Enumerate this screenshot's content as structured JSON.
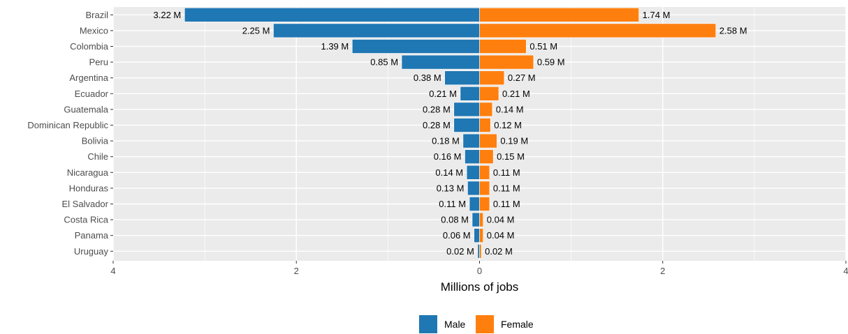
{
  "chart_data": {
    "type": "bar",
    "orientation": "horizontal-diverging",
    "categories": [
      "Brazil",
      "Mexico",
      "Colombia",
      "Peru",
      "Argentina",
      "Ecuador",
      "Guatemala",
      "Dominican Republic",
      "Bolivia",
      "Chile",
      "Nicaragua",
      "Honduras",
      "El Salvador",
      "Costa Rica",
      "Panama",
      "Uruguay"
    ],
    "series": [
      {
        "name": "Male",
        "color": "#1f77b4",
        "direction": "left",
        "values": [
          3.22,
          2.25,
          1.39,
          0.85,
          0.38,
          0.21,
          0.28,
          0.28,
          0.18,
          0.16,
          0.14,
          0.13,
          0.11,
          0.08,
          0.06,
          0.02
        ],
        "labels": [
          "3.22 M",
          "2.25 M",
          "1.39 M",
          "0.85 M",
          "0.38 M",
          "0.21 M",
          "0.28 M",
          "0.28 M",
          "0.18 M",
          "0.16 M",
          "0.14 M",
          "0.13 M",
          "0.11 M",
          "0.08 M",
          "0.06 M",
          "0.02 M"
        ]
      },
      {
        "name": "Female",
        "color": "#ff7f0e",
        "direction": "right",
        "values": [
          1.74,
          2.58,
          0.51,
          0.59,
          0.27,
          0.21,
          0.14,
          0.12,
          0.19,
          0.15,
          0.11,
          0.11,
          0.11,
          0.04,
          0.04,
          0.02
        ],
        "labels": [
          "1.74 M",
          "2.58 M",
          "0.51 M",
          "0.59 M",
          "0.27 M",
          "0.21 M",
          "0.14 M",
          "0.12 M",
          "0.19 M",
          "0.15 M",
          "0.11 M",
          "0.11 M",
          "0.11 M",
          "0.04 M",
          "0.04 M",
          "0.02 M"
        ]
      }
    ],
    "xlabel": "Millions of jobs",
    "ylabel": "",
    "title": "",
    "xlim": [
      -4,
      4
    ],
    "xticks": [
      -4,
      -2,
      0,
      2,
      4
    ],
    "xtick_labels": [
      "4",
      "2",
      "0",
      "2",
      "4"
    ],
    "grid": true,
    "panel_background": "#ebebeb",
    "legend_position": "bottom"
  }
}
